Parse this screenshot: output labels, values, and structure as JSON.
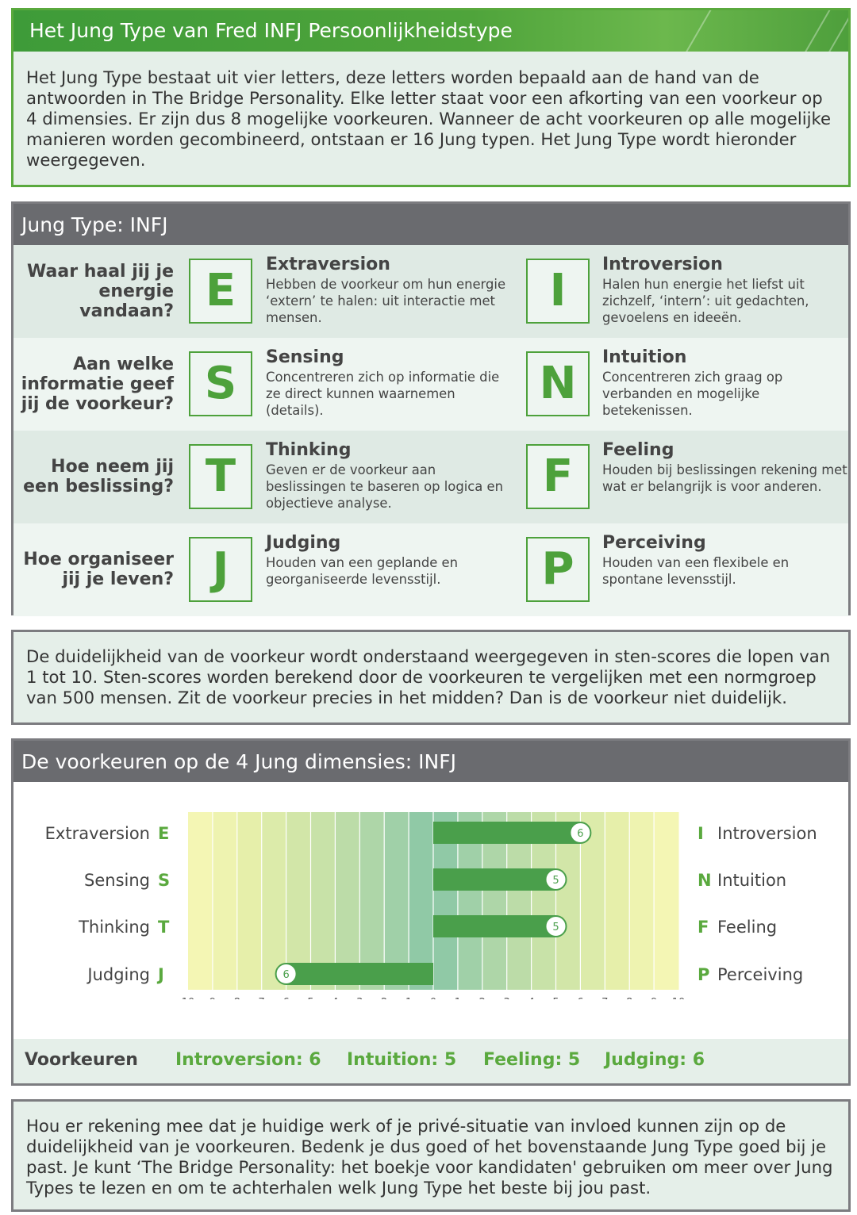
{
  "intro": {
    "title": "Het Jung Type van Fred INFJ Persoonlijkheidstype",
    "text": "Het Jung Type bestaat uit vier letters, deze letters worden bepaald aan de hand van de antwoorden in The Bridge Personality. Elke letter staat voor een afkorting van een voorkeur op 4 dimensies. Er zijn dus 8 mogelijke voorkeuren. Wanneer de acht voorkeuren op alle mogelijke manieren worden gecombineerd, ontstaan er 16 Jung typen. Het Jung Type wordt hieronder weergegeven."
  },
  "jung": {
    "title": "Jung Type: INFJ",
    "rows": [
      {
        "question": "Waar haal jij je energie vandaan?",
        "left": {
          "letter": "E",
          "name": "Extraversion",
          "desc": "Hebben de voorkeur om hun energie ‘extern’ te halen: uit interactie met mensen."
        },
        "right": {
          "letter": "I",
          "name": "Introversion",
          "desc": "Halen hun energie het liefst uit zichzelf, ‘intern’: uit gedachten, gevoelens en ideeën."
        }
      },
      {
        "question": "Aan welke informatie geef jij de voorkeur?",
        "left": {
          "letter": "S",
          "name": "Sensing",
          "desc": "Concentreren zich op informatie die ze direct kunnen waarnemen (details)."
        },
        "right": {
          "letter": "N",
          "name": "Intuition",
          "desc": "Concentreren zich graag op verbanden en mogelijke betekenissen."
        }
      },
      {
        "question": "Hoe neem jij een beslissing?",
        "left": {
          "letter": "T",
          "name": "Thinking",
          "desc": "Geven er de voorkeur aan beslissingen te baseren op logica en objectieve analyse."
        },
        "right": {
          "letter": "F",
          "name": "Feeling",
          "desc": "Houden bij beslissingen rekening met wat er belangrijk is voor anderen."
        }
      },
      {
        "question": "Hoe organiseer jij je leven?",
        "left": {
          "letter": "J",
          "name": "Judging",
          "desc": "Houden van een geplande en georganiseerde levensstijl."
        },
        "right": {
          "letter": "P",
          "name": "Perceiving",
          "desc": "Houden van een flexibele en spontane levensstijl."
        }
      }
    ]
  },
  "sten": {
    "text": "De duidelijkheid van de voorkeur wordt onderstaand weergegeven in sten-scores die lopen van 1 tot 10. Sten-scores worden berekend door de voorkeuren te vergelijken met een normgroep van 500 mensen. Zit de voorkeur precies in het midden? Dan is de voorkeur niet duidelijk."
  },
  "chart_section": {
    "title": "De voorkeuren op de 4 Jung dimensies: INFJ",
    "footer": {
      "label": "Voorkeuren",
      "items": [
        "Introversion: 6",
        "Intuition: 5",
        "Feeling: 5",
        "Judging: 6"
      ]
    }
  },
  "chart_data": {
    "type": "bar",
    "orientation": "horizontal-diverging",
    "xlim": [
      -10,
      10
    ],
    "tick_labels": [
      "10",
      "9",
      "8",
      "7",
      "6",
      "5",
      "4",
      "3",
      "2",
      "1",
      "0",
      "1",
      "2",
      "3",
      "4",
      "5",
      "6",
      "7",
      "8",
      "9",
      "10"
    ],
    "rows": [
      {
        "left_label": "Extraversion",
        "left_letter": "E",
        "right_letter": "I",
        "right_label": "Introversion",
        "value": 6,
        "side": "right"
      },
      {
        "left_label": "Sensing",
        "left_letter": "S",
        "right_letter": "N",
        "right_label": "Intuition",
        "value": 5,
        "side": "right"
      },
      {
        "left_label": "Thinking",
        "left_letter": "T",
        "right_letter": "F",
        "right_label": "Feeling",
        "value": 5,
        "side": "right"
      },
      {
        "left_label": "Judging",
        "left_letter": "J",
        "right_letter": "P",
        "right_label": "Perceiving",
        "value": 6,
        "side": "left"
      }
    ],
    "colors": {
      "bar": "#4a9f4b",
      "letter": "#4da13b",
      "accent_text": "#5aa93e"
    }
  },
  "note": {
    "text": "Hou er rekening mee dat je huidige werk of je privé-situatie van invloed kunnen zijn op de duidelijkheid van je voorkeuren. Bedenk je dus goed of het bovenstaande Jung Type goed bij je past. Je kunt ‘The Bridge Personality: het boekje voor kandidaten' gebruiken om meer over Jung Types te lezen en om te achterhalen welk Jung Type het beste bij jou past."
  }
}
